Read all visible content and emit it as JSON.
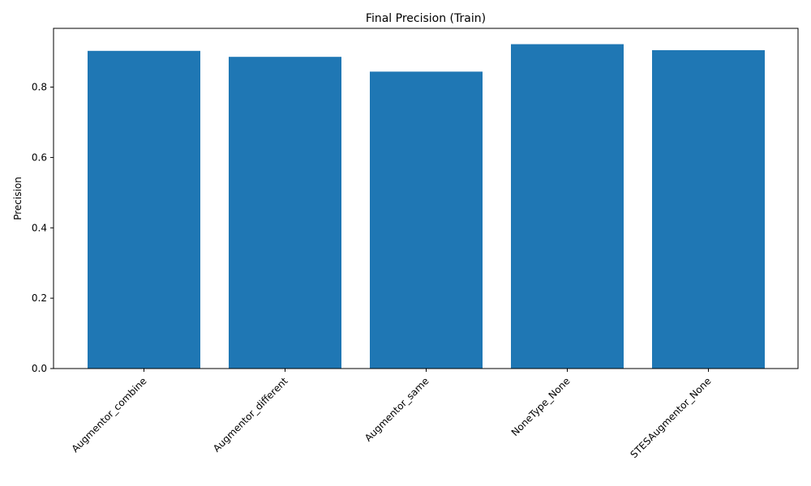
{
  "chart_data": {
    "type": "bar",
    "title": "Final Precision (Train)",
    "xlabel": "",
    "ylabel": "Precision",
    "categories": [
      "Augmentor_combine",
      "Augmentor_different",
      "Augmentor_same",
      "NoneType_None",
      "STESAugmentor_None"
    ],
    "values": [
      0.903,
      0.886,
      0.844,
      0.922,
      0.905
    ],
    "ylim": [
      0,
      0.967
    ],
    "yticks": [
      "0.0",
      "0.2",
      "0.4",
      "0.6",
      "0.8"
    ],
    "grid": false,
    "bar_color": "#1f77b4"
  }
}
